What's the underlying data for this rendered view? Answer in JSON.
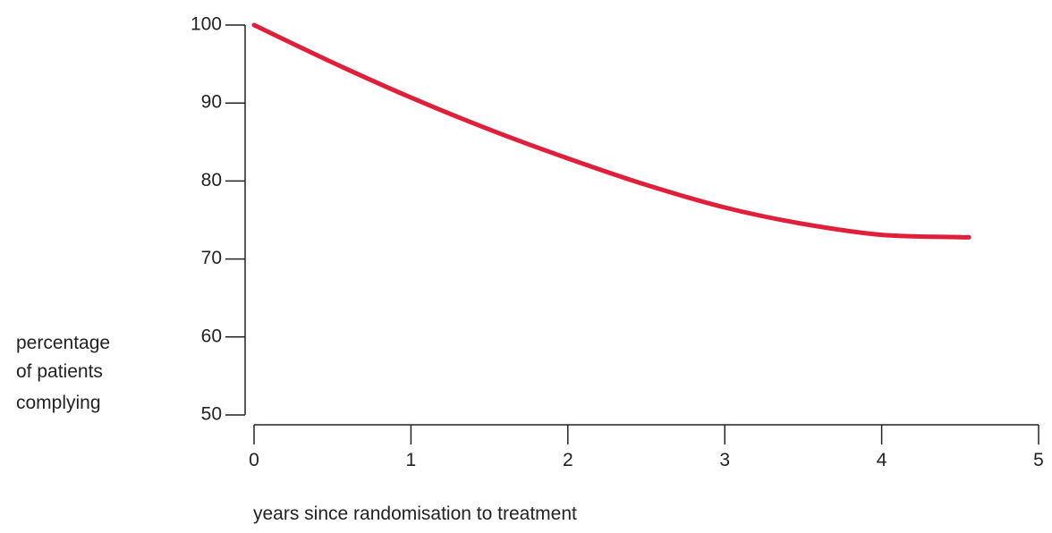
{
  "chart_data": {
    "type": "line",
    "title": "",
    "xlabel": "years since randomisation to treatment",
    "ylabel_lines": [
      "percentage",
      "of patients",
      "complying"
    ],
    "xlim": [
      0,
      5
    ],
    "ylim": [
      50,
      100
    ],
    "x_ticks": [
      0,
      1,
      2,
      3,
      4,
      5
    ],
    "x_tick_labels": [
      "0",
      "1",
      "2",
      "3",
      "4",
      "5"
    ],
    "y_ticks": [
      50,
      60,
      70,
      80,
      90,
      100
    ],
    "y_tick_labels": [
      "50",
      "60",
      "70",
      "80",
      "90",
      "100"
    ],
    "grid": false,
    "series": [
      {
        "color": "#e0203a",
        "x": [
          0,
          0.5,
          1,
          1.5,
          2,
          2.5,
          3,
          3.5,
          4,
          4.5,
          4.55
        ],
        "y": [
          100,
          95.2,
          90.7,
          86.6,
          82.9,
          79.5,
          76.6,
          74.5,
          73.1,
          72.8,
          72.8
        ]
      }
    ]
  }
}
